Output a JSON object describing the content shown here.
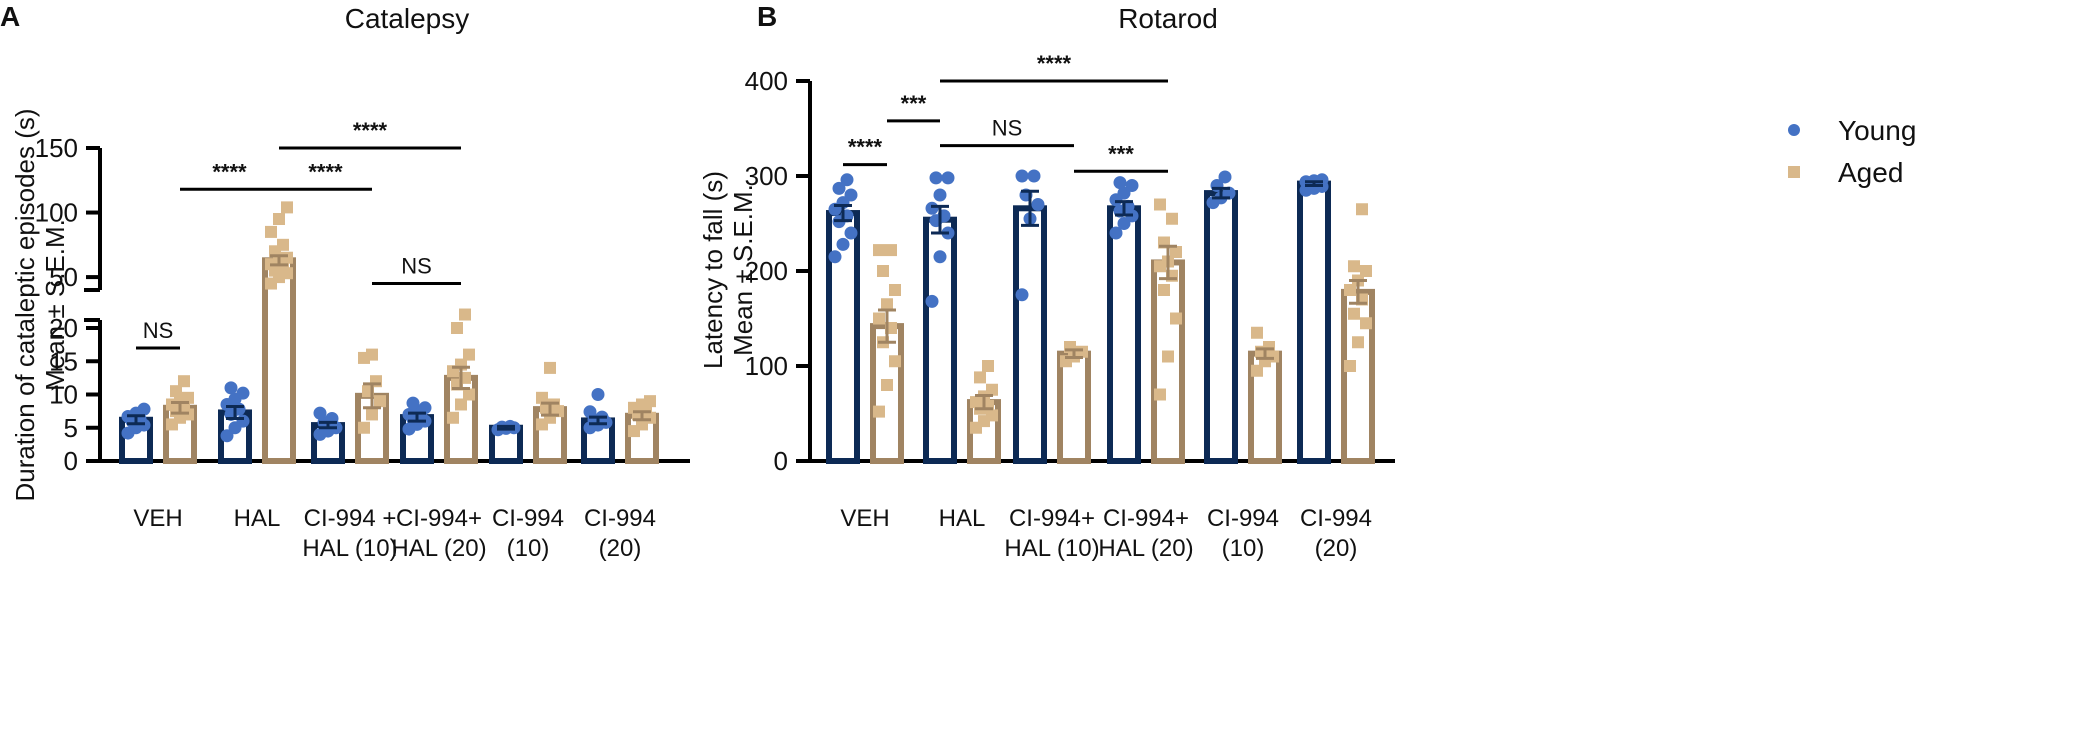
{
  "colors": {
    "young": "#4472c4",
    "young_bar": "#0d2a55",
    "aged": "#d9b88a",
    "aged_bar": "#a08462",
    "axis": "#000000"
  },
  "legend": {
    "young_label": "Young",
    "aged_label": "Aged"
  },
  "chart_data": [
    {
      "type": "bar",
      "panel": "A",
      "title": "Catalepsy",
      "xlabel": "",
      "ylabel_line1": "Duration of cataleptic episodes (s)",
      "ylabel_line2": "Mean ± S.E.M.",
      "y_axis_broken": true,
      "ylim_lower": [
        0,
        20
      ],
      "ylim_upper": [
        40,
        150
      ],
      "yticks_lower": [
        0,
        5,
        10,
        15,
        20
      ],
      "yticks_upper": [
        50,
        100,
        150
      ],
      "categories": [
        [
          "VEH"
        ],
        [
          "HAL"
        ],
        [
          "CI-994 +",
          "HAL (10)"
        ],
        [
          "CI-994+",
          "HAL (20)"
        ],
        [
          "CI-994",
          "(10)"
        ],
        [
          "CI-994",
          "(20)"
        ]
      ],
      "series": [
        {
          "name": "Young",
          "values": [
            6.2,
            7.3,
            5.4,
            6.6,
            5.0,
            6.1
          ],
          "sem": [
            0.6,
            0.9,
            0.4,
            0.6,
            0.2,
            0.5
          ],
          "points": [
            [
              4.2,
              5.0,
              5.4,
              6.0,
              6.3,
              6.7,
              7.2,
              7.8
            ],
            [
              3.8,
              5.0,
              6.0,
              7.0,
              7.8,
              8.5,
              9.3,
              10.2,
              11.0
            ],
            [
              4.0,
              4.5,
              5.0,
              5.8,
              6.4,
              7.2
            ],
            [
              4.8,
              5.5,
              6.0,
              6.3,
              6.6,
              7.0,
              7.4,
              8.0,
              8.7
            ],
            [
              4.7,
              4.9,
              5.0,
              5.1,
              5.2
            ],
            [
              5.0,
              5.4,
              5.8,
              6.2,
              6.6,
              7.4,
              10.0
            ]
          ]
        },
        {
          "name": "Aged",
          "values": [
            8.0,
            63.0,
            9.8,
            12.5,
            7.8,
            6.8
          ],
          "sem": [
            0.8,
            3.5,
            1.8,
            1.6,
            0.9,
            0.6
          ],
          "points": [
            [
              5.5,
              6.5,
              7.0,
              7.5,
              8.0,
              8.5,
              9.0,
              9.5,
              10.5,
              12.0
            ],
            [
              45,
              50,
              53,
              55,
              57,
              60,
              62,
              65,
              70,
              75,
              85,
              95,
              104
            ],
            [
              5.0,
              7.0,
              9.0,
              10.5,
              12.0,
              15.5,
              16.0
            ],
            [
              6.5,
              8.5,
              10.0,
              11.5,
              12.5,
              13.5,
              14.5,
              16.0,
              20.0,
              21.0
            ],
            [
              5.5,
              6.5,
              7.5,
              8.0,
              8.5,
              9.5,
              14.0
            ],
            [
              4.5,
              5.5,
              6.5,
              7.0,
              7.5,
              8.0,
              8.5,
              9.0
            ]
          ]
        }
      ],
      "significance": [
        {
          "label": "NS",
          "from": [
            0,
            0
          ],
          "to": [
            0,
            1
          ],
          "level": 17.0
        },
        {
          "label": "****",
          "from": [
            0,
            1
          ],
          "to": [
            1,
            1
          ],
          "level": 118
        },
        {
          "label": "****",
          "from": [
            1,
            1
          ],
          "to": [
            2,
            1
          ],
          "level": 118
        },
        {
          "label": "****",
          "from": [
            1,
            1
          ],
          "to": [
            3,
            1
          ],
          "level": 150
        },
        {
          "label": "NS",
          "from": [
            2,
            1
          ],
          "to": [
            3,
            1
          ],
          "level": 45
        }
      ]
    },
    {
      "type": "bar",
      "panel": "B",
      "title": "Rotarod",
      "xlabel": "",
      "ylabel_line1": "Latency to fall (s)",
      "ylabel_line2": "Mean ± S.E.M.",
      "ylim": [
        0,
        400
      ],
      "yticks": [
        0,
        100,
        200,
        300,
        400
      ],
      "categories": [
        [
          "VEH"
        ],
        [
          "HAL"
        ],
        [
          "CI-994+",
          "HAL (10)"
        ],
        [
          "CI-994+",
          "HAL (20)"
        ],
        [
          "CI-994",
          "(10)"
        ],
        [
          "CI-994",
          "(20)"
        ]
      ],
      "series": [
        {
          "name": "Young",
          "values": [
            261,
            254,
            266,
            266,
            282,
            292
          ],
          "sem": [
            8,
            14,
            18,
            7,
            5,
            2
          ],
          "points": [
            [
              215,
              228,
              240,
              252,
              258,
              265,
              272,
              280,
              287,
              296
            ],
            [
              168,
              215,
              240,
              253,
              258,
              266,
              280,
              298,
              298
            ],
            [
              175,
              255,
              270,
              280,
              300,
              300
            ],
            [
              240,
              250,
              258,
              263,
              268,
              275,
              282,
              290,
              293
            ],
            [
              272,
              277,
              282,
              290,
              299
            ],
            [
              285,
              287,
              289,
              291,
              293,
              294,
              295,
              296
            ]
          ]
        },
        {
          "name": "Aged",
          "values": [
            142,
            62,
            113,
            209,
            113,
            178
          ],
          "sem": [
            17,
            7,
            4,
            17,
            5,
            12
          ],
          "points": [
            [
              52,
              80,
              105,
              125,
              140,
              150,
              165,
              180,
              200,
              222,
              222
            ],
            [
              35,
              42,
              48,
              55,
              58,
              62,
              68,
              75,
              88,
              100
            ],
            [
              105,
              110,
              115,
              120
            ],
            [
              70,
              110,
              150,
              180,
              195,
              205,
              210,
              220,
              230,
              255,
              270
            ],
            [
              95,
              105,
              110,
              115,
              120,
              135
            ],
            [
              100,
              125,
              145,
              155,
              170,
              180,
              190,
              200,
              205,
              265
            ]
          ]
        }
      ],
      "significance": [
        {
          "label": "****",
          "from": [
            0,
            0
          ],
          "to": [
            0,
            1
          ],
          "level": 312
        },
        {
          "label": "***",
          "from": [
            0,
            1
          ],
          "to": [
            1,
            0
          ],
          "level": 358
        },
        {
          "label": "NS",
          "from": [
            1,
            0
          ],
          "to": [
            2,
            1
          ],
          "level": 332
        },
        {
          "label": "****",
          "from": [
            1,
            0
          ],
          "to": [
            3,
            1
          ],
          "level": 400
        },
        {
          "label": "***",
          "from": [
            2,
            1
          ],
          "to": [
            3,
            1
          ],
          "level": 305
        }
      ]
    }
  ]
}
